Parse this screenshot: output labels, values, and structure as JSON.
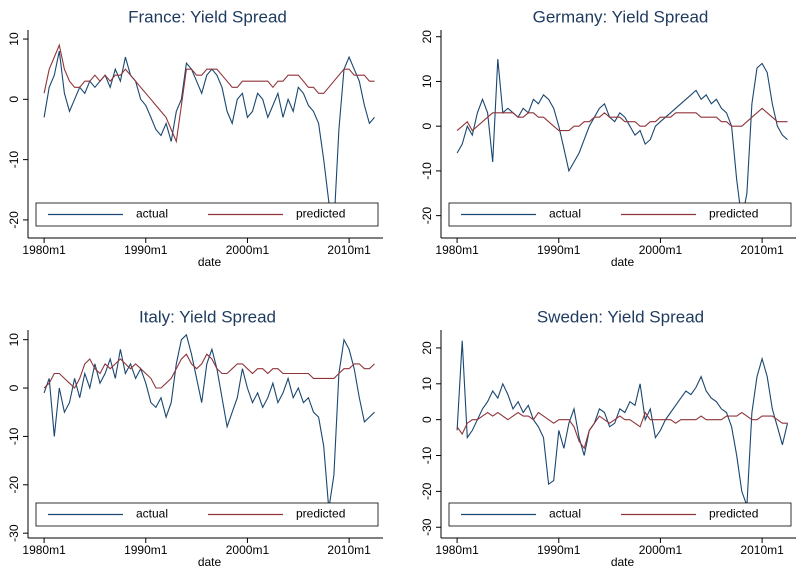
{
  "chart_data": [
    {
      "type": "line",
      "title": "France: Yield Spread",
      "xlabel": "date",
      "x": [
        "1980m1",
        "1980m7",
        "1981m1",
        "1981m7",
        "1982m1",
        "1982m7",
        "1983m1",
        "1983m7",
        "1984m1",
        "1984m7",
        "1985m1",
        "1985m7",
        "1986m1",
        "1986m7",
        "1987m1",
        "1987m7",
        "1988m1",
        "1988m7",
        "1989m1",
        "1989m7",
        "1990m1",
        "1990m7",
        "1991m1",
        "1991m7",
        "1992m1",
        "1992m7",
        "1993m1",
        "1993m7",
        "1994m1",
        "1994m7",
        "1995m1",
        "1995m7",
        "1996m1",
        "1996m7",
        "1997m1",
        "1997m7",
        "1998m1",
        "1998m7",
        "1999m1",
        "1999m7",
        "2000m1",
        "2000m7",
        "2001m1",
        "2001m7",
        "2002m1",
        "2002m7",
        "2003m1",
        "2003m7",
        "2004m1",
        "2004m7",
        "2005m1",
        "2005m7",
        "2006m1",
        "2006m7",
        "2007m1",
        "2007m7",
        "2008m1",
        "2008m7",
        "2009m1",
        "2009m7",
        "2010m1",
        "2010m7",
        "2011m1",
        "2011m7",
        "2012m1",
        "2012m7"
      ],
      "series": [
        {
          "name": "actual",
          "color": "#1a476f",
          "values": [
            -3,
            2,
            4,
            8,
            1,
            -2,
            0,
            2,
            1,
            3,
            2,
            3,
            4,
            2,
            5,
            3,
            7,
            4,
            3,
            0,
            -1,
            -3,
            -5,
            -6,
            -4,
            -7,
            -2,
            0,
            6,
            5,
            3,
            1,
            4,
            5,
            4,
            2,
            -2,
            -4,
            0,
            1,
            -3,
            -2,
            1,
            0,
            -3,
            -1,
            1,
            -3,
            0,
            -2,
            2,
            1,
            -1,
            -2,
            -4,
            -10,
            -17,
            -21,
            -5,
            5,
            7,
            5,
            3,
            -1,
            -4,
            -3
          ]
        },
        {
          "name": "predicted",
          "color": "#90353b",
          "values": [
            1,
            5,
            7,
            9,
            5,
            3,
            2,
            2,
            3,
            3,
            4,
            3,
            4,
            3,
            4,
            4,
            5,
            4,
            3,
            2,
            1,
            0,
            -1,
            -2,
            -3,
            -5,
            -7,
            -1,
            5,
            5,
            4,
            4,
            5,
            5,
            5,
            4,
            3,
            2,
            2,
            3,
            3,
            3,
            3,
            3,
            3,
            2,
            3,
            3,
            4,
            4,
            4,
            3,
            2,
            2,
            1,
            1,
            2,
            3,
            4,
            5,
            5,
            4,
            4,
            4,
            3,
            3
          ]
        }
      ],
      "xlim": [
        "1978m6",
        "2013m5"
      ],
      "xticks": [
        "1980m1",
        "1990m1",
        "2000m1",
        "2010m1"
      ],
      "ylim": [
        -23,
        11.5
      ],
      "yticks": [
        -20,
        -10,
        0,
        10
      ]
    },
    {
      "type": "line",
      "title": "Germany: Yield Spread",
      "xlabel": "date",
      "x": [
        "1980m1",
        "1980m7",
        "1981m1",
        "1981m7",
        "1982m1",
        "1982m7",
        "1983m1",
        "1983m7",
        "1984m1",
        "1984m7",
        "1985m1",
        "1985m7",
        "1986m1",
        "1986m7",
        "1987m1",
        "1987m7",
        "1988m1",
        "1988m7",
        "1989m1",
        "1989m7",
        "1990m1",
        "1990m7",
        "1991m1",
        "1991m7",
        "1992m1",
        "1992m7",
        "1993m1",
        "1993m7",
        "1994m1",
        "1994m7",
        "1995m1",
        "1995m7",
        "1996m1",
        "1996m7",
        "1997m1",
        "1997m7",
        "1998m1",
        "1998m7",
        "1999m1",
        "1999m7",
        "2000m1",
        "2000m7",
        "2001m1",
        "2001m7",
        "2002m1",
        "2002m7",
        "2003m1",
        "2003m7",
        "2004m1",
        "2004m7",
        "2005m1",
        "2005m7",
        "2006m1",
        "2006m7",
        "2007m1",
        "2007m7",
        "2008m1",
        "2008m7",
        "2009m1",
        "2009m7",
        "2010m1",
        "2010m7",
        "2011m1",
        "2011m7",
        "2012m1",
        "2012m7"
      ],
      "series": [
        {
          "name": "actual",
          "color": "#1a476f",
          "values": [
            -6,
            -4,
            0,
            -2,
            3,
            6,
            3,
            -8,
            15,
            3,
            4,
            3,
            2,
            4,
            3,
            6,
            5,
            7,
            6,
            4,
            0,
            -5,
            -10,
            -8,
            -6,
            -3,
            0,
            2,
            4,
            5,
            2,
            1,
            3,
            2,
            0,
            -2,
            -1,
            -4,
            -3,
            0,
            1,
            2,
            3,
            4,
            5,
            6,
            7,
            8,
            6,
            7,
            5,
            6,
            4,
            3,
            0,
            -12,
            -21,
            -15,
            5,
            13,
            14,
            12,
            5,
            0,
            -2,
            -3
          ]
        },
        {
          "name": "predicted",
          "color": "#90353b",
          "values": [
            -1,
            0,
            1,
            -1,
            0,
            1,
            2,
            3,
            3,
            3,
            3,
            3,
            2,
            2,
            3,
            3,
            2,
            2,
            1,
            0,
            -1,
            -1,
            -1,
            0,
            0,
            1,
            1,
            2,
            2,
            3,
            2,
            2,
            2,
            1,
            1,
            1,
            0,
            0,
            1,
            1,
            2,
            2,
            2,
            3,
            3,
            3,
            3,
            3,
            2,
            2,
            2,
            2,
            1,
            1,
            0,
            0,
            0,
            1,
            2,
            3,
            4,
            3,
            2,
            1,
            1,
            1
          ]
        }
      ],
      "xlim": [
        "1978m6",
        "2013m5"
      ],
      "xticks": [
        "1980m1",
        "1990m1",
        "2000m1",
        "2010m1"
      ],
      "ylim": [
        -25,
        21.5
      ],
      "yticks": [
        -20,
        -10,
        0,
        10,
        20
      ]
    },
    {
      "type": "line",
      "title": "Italy: Yield Spread",
      "xlabel": "date",
      "x": [
        "1980m1",
        "1980m7",
        "1981m1",
        "1981m7",
        "1982m1",
        "1982m7",
        "1983m1",
        "1983m7",
        "1984m1",
        "1984m7",
        "1985m1",
        "1985m7",
        "1986m1",
        "1986m7",
        "1987m1",
        "1987m7",
        "1988m1",
        "1988m7",
        "1989m1",
        "1989m7",
        "1990m1",
        "1990m7",
        "1991m1",
        "1991m7",
        "1992m1",
        "1992m7",
        "1993m1",
        "1993m7",
        "1994m1",
        "1994m7",
        "1995m1",
        "1995m7",
        "1996m1",
        "1996m7",
        "1997m1",
        "1997m7",
        "1998m1",
        "1998m7",
        "1999m1",
        "1999m7",
        "2000m1",
        "2000m7",
        "2001m1",
        "2001m7",
        "2002m1",
        "2002m7",
        "2003m1",
        "2003m7",
        "2004m1",
        "2004m7",
        "2005m1",
        "2005m7",
        "2006m1",
        "2006m7",
        "2007m1",
        "2007m7",
        "2008m1",
        "2008m7",
        "2009m1",
        "2009m7",
        "2010m1",
        "2010m7",
        "2011m1",
        "2011m7",
        "2012m1",
        "2012m7"
      ],
      "series": [
        {
          "name": "actual",
          "color": "#1a476f",
          "values": [
            -1,
            2,
            -10,
            0,
            -5,
            -3,
            2,
            -2,
            3,
            0,
            5,
            1,
            3,
            6,
            2,
            8,
            3,
            5,
            2,
            4,
            1,
            -3,
            -4,
            -2,
            -6,
            -3,
            5,
            10,
            11,
            7,
            2,
            -3,
            5,
            8,
            4,
            -2,
            -8,
            -5,
            -2,
            4,
            0,
            -3,
            -1,
            -4,
            -2,
            1,
            -3,
            -1,
            2,
            -2,
            0,
            -3,
            -2,
            -5,
            -6,
            -12,
            -25,
            -18,
            3,
            10,
            8,
            4,
            -2,
            -7,
            -6,
            -5
          ]
        },
        {
          "name": "predicted",
          "color": "#90353b",
          "values": [
            0,
            1,
            3,
            3,
            2,
            1,
            0,
            2,
            5,
            6,
            4,
            3,
            5,
            4,
            5,
            6,
            5,
            4,
            5,
            4,
            3,
            2,
            0,
            0,
            1,
            2,
            4,
            6,
            7,
            5,
            4,
            5,
            7,
            6,
            4,
            3,
            3,
            4,
            5,
            5,
            4,
            3,
            4,
            4,
            3,
            4,
            4,
            3,
            3,
            3,
            3,
            3,
            3,
            2,
            2,
            2,
            2,
            2,
            3,
            4,
            4,
            5,
            5,
            4,
            4,
            5
          ]
        }
      ],
      "xlim": [
        "1978m6",
        "2013m5"
      ],
      "xticks": [
        "1980m1",
        "1990m1",
        "2000m1",
        "2010m1"
      ],
      "ylim": [
        -31,
        12
      ],
      "yticks": [
        -30,
        -20,
        -10,
        0,
        10
      ]
    },
    {
      "type": "line",
      "title": "Sweden: Yield Spread",
      "xlabel": "date",
      "x": [
        "1980m1",
        "1980m7",
        "1981m1",
        "1981m7",
        "1982m1",
        "1982m7",
        "1983m1",
        "1983m7",
        "1984m1",
        "1984m7",
        "1985m1",
        "1985m7",
        "1986m1",
        "1986m7",
        "1987m1",
        "1987m7",
        "1988m1",
        "1988m7",
        "1989m1",
        "1989m7",
        "1990m1",
        "1990m7",
        "1991m1",
        "1991m7",
        "1992m1",
        "1992m7",
        "1993m1",
        "1993m7",
        "1994m1",
        "1994m7",
        "1995m1",
        "1995m7",
        "1996m1",
        "1996m7",
        "1997m1",
        "1997m7",
        "1998m1",
        "1998m7",
        "1999m1",
        "1999m7",
        "2000m1",
        "2000m7",
        "2001m1",
        "2001m7",
        "2002m1",
        "2002m7",
        "2003m1",
        "2003m7",
        "2004m1",
        "2004m7",
        "2005m1",
        "2005m7",
        "2006m1",
        "2006m7",
        "2007m1",
        "2007m7",
        "2008m1",
        "2008m7",
        "2009m1",
        "2009m7",
        "2010m1",
        "2010m7",
        "2011m1",
        "2011m7",
        "2012m1",
        "2012m7"
      ],
      "series": [
        {
          "name": "actual",
          "color": "#1a476f",
          "values": [
            -3,
            22,
            -5,
            -3,
            0,
            3,
            5,
            8,
            6,
            10,
            7,
            3,
            5,
            2,
            4,
            0,
            -2,
            -5,
            -18,
            -17,
            -3,
            -8,
            -1,
            3,
            -5,
            -10,
            -3,
            -1,
            3,
            2,
            -2,
            -1,
            3,
            2,
            5,
            4,
            10,
            0,
            3,
            -5,
            -3,
            0,
            2,
            4,
            6,
            8,
            7,
            9,
            12,
            8,
            6,
            5,
            3,
            2,
            -2,
            -10,
            -20,
            -24,
            2,
            12,
            17,
            12,
            3,
            -2,
            -7,
            -1
          ]
        },
        {
          "name": "predicted",
          "color": "#90353b",
          "values": [
            -2,
            -4,
            -1,
            0,
            0,
            1,
            2,
            1,
            2,
            1,
            0,
            1,
            2,
            1,
            1,
            0,
            2,
            1,
            0,
            -1,
            0,
            0,
            0,
            -2,
            -6,
            -8,
            -3,
            -1,
            1,
            0,
            -1,
            0,
            1,
            0,
            0,
            -1,
            -2,
            2,
            0,
            0,
            0,
            0,
            0,
            -1,
            0,
            0,
            0,
            0,
            1,
            0,
            0,
            0,
            0,
            1,
            1,
            1,
            2,
            1,
            0,
            0,
            1,
            1,
            1,
            0,
            -1,
            -1
          ]
        }
      ],
      "xlim": [
        "1978m6",
        "2013m5"
      ],
      "xticks": [
        "1980m1",
        "1990m1",
        "2000m1",
        "2010m1"
      ],
      "ylim": [
        -33,
        25
      ],
      "yticks": [
        -30,
        -20,
        -10,
        0,
        10,
        20
      ]
    }
  ]
}
